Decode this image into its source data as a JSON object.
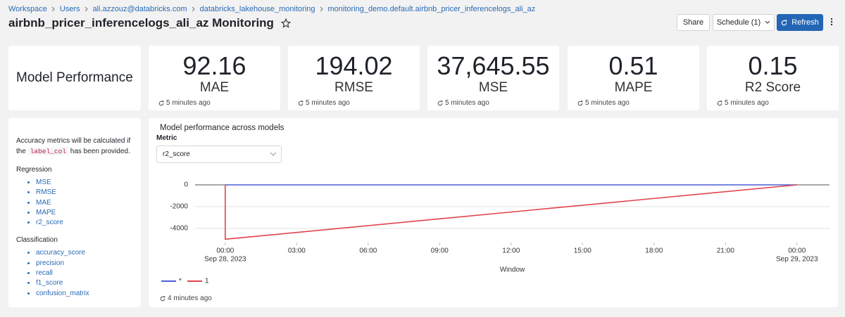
{
  "breadcrumb": [
    "Workspace",
    "Users",
    "ali.azzouz@databricks.com",
    "databricks_lakehouse_monitoring",
    "monitoring_demo.default.airbnb_pricer_inferencelogs_ali_az"
  ],
  "header": {
    "title": "airbnb_pricer_inferencelogs_ali_az Monitoring",
    "buttons": {
      "share": "Share",
      "schedule": "Schedule (1)",
      "refresh": "Refresh"
    }
  },
  "summary": {
    "title": "Model Performance",
    "metrics": [
      {
        "value": "92.16",
        "label": "MAE",
        "updated": "5 minutes ago"
      },
      {
        "value": "194.02",
        "label": "RMSE",
        "updated": "5 minutes ago"
      },
      {
        "value": "37,645.55",
        "label": "MSE",
        "updated": "5 minutes ago"
      },
      {
        "value": "0.51",
        "label": "MAPE",
        "updated": "5 minutes ago"
      },
      {
        "value": "0.15",
        "label": "R2 Score",
        "updated": "5 minutes ago"
      }
    ]
  },
  "notes": {
    "intro_before": "Accuracy metrics will be calculated if the",
    "code": "label_col",
    "intro_after": "has been provided.",
    "regression_title": "Regression",
    "regression": [
      "MSE",
      "RMSE",
      "MAE",
      "MAPE",
      "r2_score"
    ],
    "classification_title": "Classification",
    "classification": [
      "accuracy_score",
      "precision",
      "recall",
      "f1_score",
      "confusion_matrix"
    ]
  },
  "panel": {
    "metric_label": "Metric",
    "metric_selected": "r2_score",
    "updated": "4 minutes ago"
  },
  "chart_data": {
    "type": "line",
    "title": "Model performance across models",
    "xlabel": "Window",
    "xlim": [
      "2023-09-27T22:44",
      "2023-09-29T01:22"
    ],
    "xticks": [
      {
        "value": "2023-09-28T00:00",
        "label": [
          "00:00",
          "Sep 28, 2023"
        ]
      },
      {
        "value": "2023-09-28T03:00",
        "label": [
          "03:00"
        ]
      },
      {
        "value": "2023-09-28T06:00",
        "label": [
          "06:00"
        ]
      },
      {
        "value": "2023-09-28T09:00",
        "label": [
          "09:00"
        ]
      },
      {
        "value": "2023-09-28T12:00",
        "label": [
          "12:00"
        ]
      },
      {
        "value": "2023-09-28T15:00",
        "label": [
          "15:00"
        ]
      },
      {
        "value": "2023-09-28T18:00",
        "label": [
          "18:00"
        ]
      },
      {
        "value": "2023-09-28T21:00",
        "label": [
          "21:00"
        ]
      },
      {
        "value": "2023-09-29T00:00",
        "label": [
          "00:00",
          "Sep 29, 2023"
        ]
      }
    ],
    "ylim": [
      -5300,
      840
    ],
    "yticks": [
      0,
      -2000,
      -4000
    ],
    "grid": true,
    "series": [
      {
        "name": "*",
        "color": "#4a5fd6",
        "x": [
          "2023-09-28T00:00",
          "2023-09-29T00:00"
        ],
        "values": [
          0,
          0
        ]
      },
      {
        "name": "1",
        "color": "#e0454b",
        "x": [
          "2023-09-28T00:00",
          "2023-09-28T00:00",
          "2023-09-29T00:00"
        ],
        "values": [
          0,
          -5000,
          0
        ]
      }
    ]
  }
}
